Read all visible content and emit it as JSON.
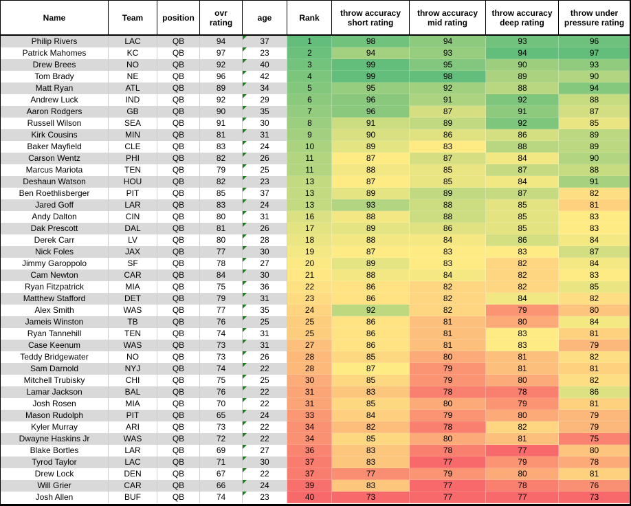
{
  "table": {
    "columns": [
      {
        "key": "name",
        "label": "Name"
      },
      {
        "key": "team",
        "label": "Team"
      },
      {
        "key": "position",
        "label": "position"
      },
      {
        "key": "ovr",
        "label": "ovr rating"
      },
      {
        "key": "age",
        "label": "age"
      },
      {
        "key": "rank",
        "label": "Rank"
      },
      {
        "key": "short",
        "label": "throw accuracy short rating"
      },
      {
        "key": "mid",
        "label": "throw accuracy mid rating"
      },
      {
        "key": "deep",
        "label": "throw accuracy deep rating"
      },
      {
        "key": "pressure",
        "label": "throw under pressure rating"
      }
    ],
    "rows": [
      [
        "Philip Rivers",
        "LAC",
        "QB",
        94,
        37,
        1,
        98,
        94,
        93,
        96
      ],
      [
        "Patrick Mahomes",
        "KC",
        "QB",
        97,
        23,
        2,
        94,
        93,
        94,
        97
      ],
      [
        "Drew Brees",
        "NO",
        "QB",
        92,
        40,
        3,
        99,
        95,
        90,
        93
      ],
      [
        "Tom Brady",
        "NE",
        "QB",
        96,
        42,
        4,
        99,
        98,
        89,
        90
      ],
      [
        "Matt Ryan",
        "ATL",
        "QB",
        89,
        34,
        5,
        95,
        92,
        88,
        94
      ],
      [
        "Andrew Luck",
        "IND",
        "QB",
        92,
        29,
        6,
        96,
        91,
        92,
        88
      ],
      [
        "Aaron Rodgers",
        "GB",
        "QB",
        90,
        35,
        7,
        96,
        87,
        91,
        87
      ],
      [
        "Russell Wilson",
        "SEA",
        "QB",
        91,
        30,
        8,
        91,
        89,
        92,
        85
      ],
      [
        "Kirk Cousins",
        "MIN",
        "QB",
        81,
        31,
        9,
        90,
        86,
        86,
        89
      ],
      [
        "Baker Mayfield",
        "CLE",
        "QB",
        83,
        24,
        10,
        89,
        83,
        88,
        89
      ],
      [
        "Carson Wentz",
        "PHI",
        "QB",
        82,
        26,
        11,
        87,
        87,
        84,
        90
      ],
      [
        "Marcus Mariota",
        "TEN",
        "QB",
        79,
        25,
        11,
        88,
        85,
        87,
        88
      ],
      [
        "Deshaun Watson",
        "HOU",
        "QB",
        82,
        23,
        13,
        87,
        85,
        84,
        91
      ],
      [
        "Ben Roethlisberger",
        "PIT",
        "QB",
        85,
        37,
        13,
        89,
        89,
        87,
        82
      ],
      [
        "Jared Goff",
        "LAR",
        "QB",
        83,
        24,
        13,
        93,
        88,
        85,
        81
      ],
      [
        "Andy Dalton",
        "CIN",
        "QB",
        80,
        31,
        16,
        88,
        88,
        85,
        83
      ],
      [
        "Dak Prescott",
        "DAL",
        "QB",
        81,
        26,
        17,
        89,
        86,
        85,
        83
      ],
      [
        "Derek Carr",
        "LV",
        "QB",
        80,
        28,
        18,
        88,
        84,
        86,
        84
      ],
      [
        "Nick Foles",
        "JAX",
        "QB",
        77,
        30,
        19,
        87,
        83,
        83,
        87
      ],
      [
        "Jimmy Garoppolo",
        "SF",
        "QB",
        78,
        27,
        20,
        89,
        83,
        82,
        84
      ],
      [
        "Cam Newton",
        "CAR",
        "QB",
        84,
        30,
        21,
        88,
        84,
        82,
        83
      ],
      [
        "Ryan Fitzpatrick",
        "MIA",
        "QB",
        75,
        36,
        22,
        86,
        82,
        82,
        85
      ],
      [
        "Matthew Stafford",
        "DET",
        "QB",
        79,
        31,
        23,
        86,
        82,
        84,
        82
      ],
      [
        "Alex Smith",
        "WAS",
        "QB",
        77,
        35,
        24,
        92,
        82,
        79,
        80
      ],
      [
        "Jameis Winston",
        "TB",
        "QB",
        76,
        25,
        25,
        86,
        81,
        80,
        84
      ],
      [
        "Ryan Tannehill",
        "TEN",
        "QB",
        74,
        31,
        25,
        86,
        81,
        83,
        81
      ],
      [
        "Case Keenum",
        "WAS",
        "QB",
        73,
        31,
        27,
        86,
        81,
        83,
        79
      ],
      [
        "Teddy Bridgewater",
        "NO",
        "QB",
        73,
        26,
        28,
        85,
        80,
        81,
        82
      ],
      [
        "Sam Darnold",
        "NYJ",
        "QB",
        74,
        22,
        28,
        87,
        79,
        81,
        81
      ],
      [
        "Mitchell Trubisky",
        "CHI",
        "QB",
        75,
        25,
        30,
        85,
        79,
        80,
        82
      ],
      [
        "Lamar Jackson",
        "BAL",
        "QB",
        76,
        22,
        31,
        83,
        78,
        78,
        86
      ],
      [
        "Josh Rosen",
        "MIA",
        "QB",
        70,
        22,
        31,
        85,
        80,
        79,
        81
      ],
      [
        "Mason Rudolph",
        "PIT",
        "QB",
        65,
        24,
        33,
        84,
        79,
        80,
        79
      ],
      [
        "Kyler Murray",
        "ARI",
        "QB",
        73,
        22,
        34,
        82,
        78,
        82,
        79
      ],
      [
        "Dwayne Haskins Jr",
        "WAS",
        "QB",
        72,
        22,
        34,
        85,
        80,
        81,
        75
      ],
      [
        "Blake Bortles",
        "LAR",
        "QB",
        69,
        27,
        36,
        83,
        78,
        77,
        80
      ],
      [
        "Tyrod Taylor",
        "LAC",
        "QB",
        71,
        30,
        37,
        83,
        77,
        79,
        78
      ],
      [
        "Drew Lock",
        "DEN",
        "QB",
        67,
        22,
        37,
        77,
        79,
        80,
        81
      ],
      [
        "Will Grier",
        "CAR",
        "QB",
        66,
        24,
        39,
        83,
        77,
        78,
        76
      ],
      [
        "Josh Allen",
        "BUF",
        "QB",
        74,
        23,
        40,
        73,
        77,
        77,
        73
      ]
    ]
  },
  "heatmap": {
    "palette": {
      "low": "#F8696B",
      "mid": "#FFEB84",
      "high": "#63BE7B"
    },
    "scales": {
      "rank": {
        "min": 1,
        "mid": 20.5,
        "max": 40,
        "reverse": true
      },
      "short": {
        "min": 73,
        "mid": 87,
        "max": 99,
        "reverse": false
      },
      "mid": {
        "min": 77,
        "mid": 83,
        "max": 98,
        "reverse": false
      },
      "deep": {
        "min": 77,
        "mid": 83,
        "max": 94,
        "reverse": false
      },
      "pressure": {
        "min": 73,
        "mid": 83,
        "max": 97,
        "reverse": false
      }
    }
  },
  "colors": {
    "row_stripe": "#D9D9D9",
    "error_indicator": "#1B7E1B",
    "grid_border": "#000000",
    "column_gridline": "#CFCFCF"
  }
}
